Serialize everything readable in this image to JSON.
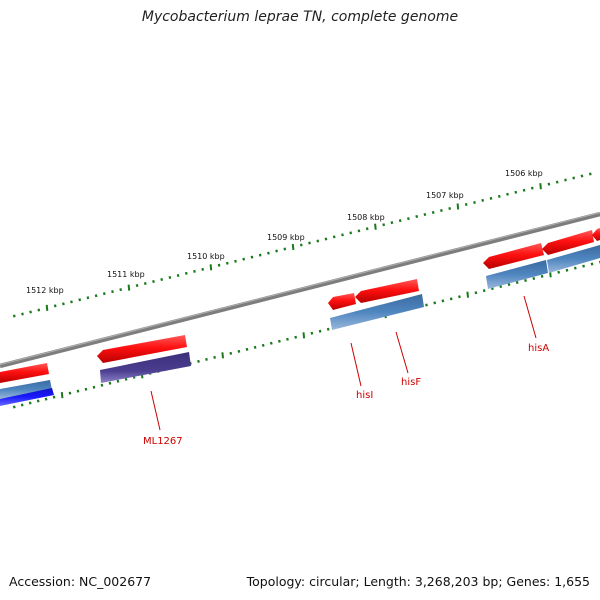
{
  "title": "Mycobacterium leprae TN, complete genome",
  "footer": {
    "accession": "Accession: NC_002677",
    "summary": "Topology: circular; Length: 3,268,203 bp; Genes: 1,655"
  },
  "scale": {
    "ticks": [
      "1512 kbp",
      "1511 kbp",
      "1510 kbp",
      "1509 kbp",
      "1508 kbp",
      "1507 kbp",
      "1506 kbp"
    ]
  },
  "genes": {
    "labels": [
      "ML1267",
      "hisI",
      "hisF",
      "hisA"
    ]
  },
  "colors": {
    "backbone": "#7a7a7a",
    "cds": "#ff1a1a",
    "track_blue": "#4a7fb5",
    "track_purple": "#4b3d8f",
    "track_darkblue": "#1a1aff",
    "tick": "#1a7a1a",
    "label": "#cc0000"
  }
}
